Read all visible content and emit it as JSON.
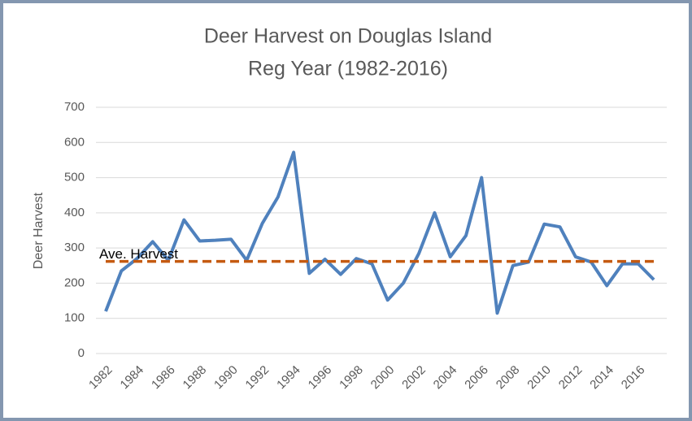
{
  "chart_data": {
    "type": "line",
    "title": [
      "Deer Harvest on Douglas Island",
      "Reg Year (1982-2016)"
    ],
    "y_label": "Deer Harvest",
    "categories": [
      "1982",
      null,
      "1984",
      null,
      "1986",
      null,
      "1988",
      null,
      "1990",
      null,
      "1992",
      null,
      "1994",
      null,
      "1996",
      null,
      "1998",
      null,
      "2000",
      null,
      "2002",
      null,
      "2004",
      null,
      "2006",
      null,
      "2008",
      null,
      "2010",
      null,
      "2012",
      null,
      "2014",
      null,
      "2016",
      null
    ],
    "series": [
      {
        "name": "Deer Harvest",
        "color": "#4f81bd",
        "values": [
          120,
          235,
          270,
          318,
          265,
          380,
          320,
          322,
          325,
          265,
          370,
          445,
          572,
          228,
          268,
          225,
          270,
          255,
          152,
          200,
          285,
          400,
          275,
          335,
          500,
          115,
          250,
          260,
          368,
          360,
          275,
          260,
          193,
          255,
          255,
          210
        ]
      }
    ],
    "average": {
      "label": "Ave. Harvest",
      "value": 262,
      "color": "#c55a11"
    },
    "ylim": [
      0,
      700
    ],
    "yticks": [
      0,
      100,
      200,
      300,
      400,
      500,
      600,
      700
    ],
    "grid": true
  }
}
